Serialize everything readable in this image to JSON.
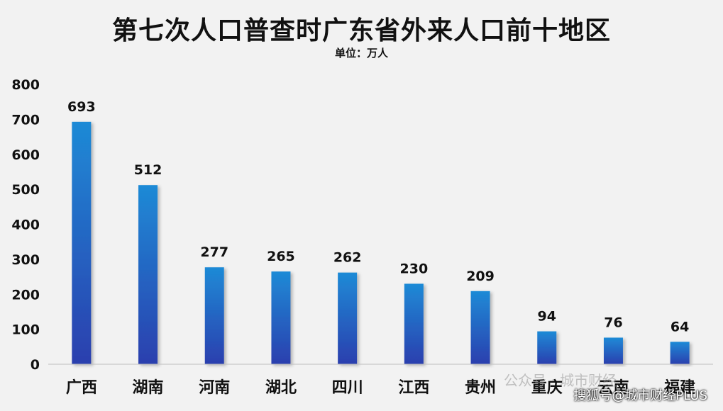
{
  "chart_data": {
    "type": "bar",
    "title": "第七次人口普查时广东省外来人口前十地区",
    "subtitle": "单位：万人",
    "categories": [
      "广西",
      "湖南",
      "河南",
      "湖北",
      "四川",
      "江西",
      "贵州",
      "重庆",
      "云南",
      "福建"
    ],
    "values": [
      693,
      512,
      277,
      265,
      262,
      230,
      209,
      94,
      76,
      64
    ],
    "ylim": [
      0,
      800
    ],
    "yticks": [
      0,
      100,
      200,
      300,
      400,
      500,
      600,
      700,
      800
    ],
    "grid": false,
    "legend": "none",
    "bar_color_top": "#1e8ad6",
    "bar_color_bottom": "#2b3fae"
  },
  "watermarks": {
    "wechat": "公众号 · 城市财经",
    "sohu": "搜狐号@城市财经PLUS"
  }
}
